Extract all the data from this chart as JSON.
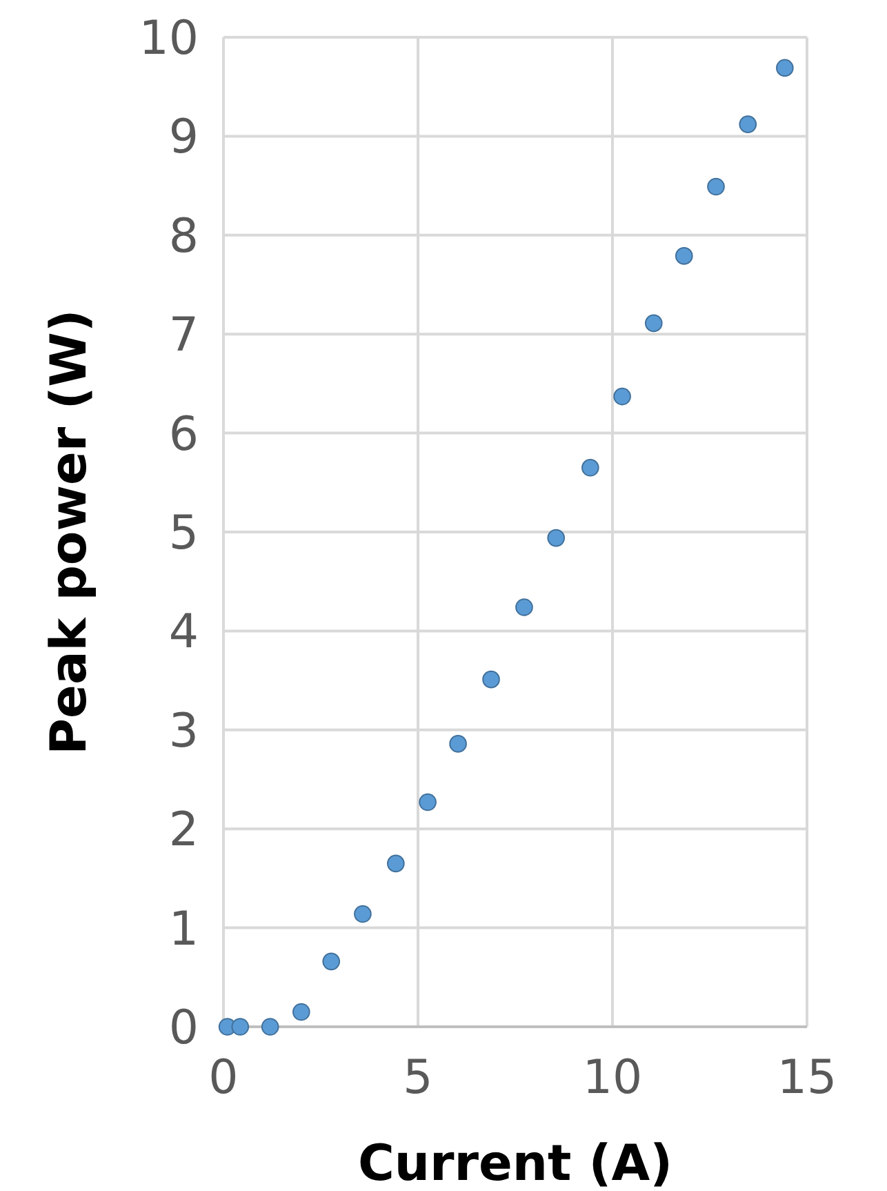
{
  "chart_data": {
    "type": "scatter",
    "xlabel": "Current (A)",
    "ylabel": "Peak power (W)",
    "x": [
      0.1,
      0.43,
      1.2,
      2.0,
      2.77,
      3.58,
      4.43,
      5.25,
      6.03,
      6.88,
      7.73,
      8.55,
      9.43,
      10.25,
      11.06,
      11.84,
      12.66,
      13.48,
      14.43
    ],
    "values": [
      0,
      0,
      0,
      0.15,
      0.66,
      1.14,
      1.65,
      2.27,
      2.86,
      3.51,
      4.24,
      4.94,
      5.65,
      6.37,
      7.11,
      7.79,
      8.49,
      9.12,
      9.69
    ],
    "color": "#5b9bd5",
    "marker": "circle",
    "grid": true,
    "xlim": [
      0,
      15
    ],
    "xticks": [
      0,
      5,
      10,
      15
    ],
    "ylim": [
      0,
      10
    ],
    "yticks": [
      0,
      1,
      2,
      3,
      4,
      5,
      6,
      7,
      8,
      9,
      10
    ]
  }
}
